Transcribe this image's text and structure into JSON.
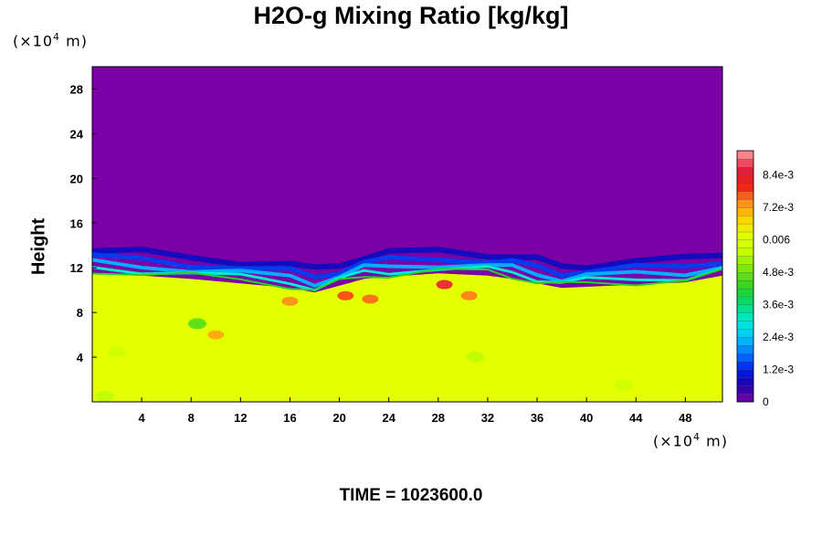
{
  "chart_data": {
    "type": "heatmap",
    "title": "H2O-g Mixing Ratio [kg/kg]",
    "ylabel": "Height",
    "xlabel": "",
    "x_unit": {
      "prefix": "(×10",
      "exponent": "4",
      "suffix": " m)"
    },
    "y_unit": {
      "prefix": "(×10",
      "exponent": "4",
      "suffix": " m)"
    },
    "x_ticks": [
      "4",
      "8",
      "12",
      "16",
      "20",
      "24",
      "28",
      "32",
      "36",
      "40",
      "44",
      "48"
    ],
    "y_ticks": [
      "4",
      "8",
      "12",
      "16",
      "20",
      "24",
      "28"
    ],
    "xlim": [
      0,
      51
    ],
    "ylim": [
      0,
      30
    ],
    "colorbar": {
      "labels": [
        "0",
        "1.2e-3",
        "2.4e-3",
        "3.6e-3",
        "4.8e-3",
        "0.006",
        "7.2e-3",
        "8.4e-3"
      ],
      "label_values": [
        0,
        0.0012,
        0.0024,
        0.0036,
        0.0048,
        0.006,
        0.0072,
        0.0084
      ],
      "range": [
        0,
        0.0093
      ]
    },
    "field": {
      "upper_value": 0,
      "lower_value": 0.0062,
      "boundary_height": [
        [
          0,
          11.5
        ],
        [
          4,
          11.3
        ],
        [
          8,
          11.0
        ],
        [
          12,
          10.6
        ],
        [
          16,
          10.2
        ],
        [
          18,
          9.8
        ],
        [
          20,
          10.4
        ],
        [
          22,
          11.0
        ],
        [
          24,
          11.2
        ],
        [
          28,
          11.5
        ],
        [
          32,
          11.3
        ],
        [
          34,
          11.0
        ],
        [
          36,
          10.6
        ],
        [
          38,
          10.2
        ],
        [
          40,
          10.3
        ],
        [
          44,
          10.5
        ],
        [
          48,
          10.7
        ],
        [
          51,
          11.3
        ]
      ],
      "moist_patches": [
        {
          "x": 20.5,
          "y": 9.5,
          "value": 0.0078
        },
        {
          "x": 22.5,
          "y": 9.2,
          "value": 0.0076
        },
        {
          "x": 28.5,
          "y": 10.5,
          "value": 0.0085
        },
        {
          "x": 30.5,
          "y": 9.5,
          "value": 0.0075
        },
        {
          "x": 16.0,
          "y": 9.0,
          "value": 0.0074
        },
        {
          "x": 10.0,
          "y": 6.0,
          "value": 0.0072
        }
      ],
      "dry_patches": [
        {
          "x": 8.5,
          "y": 7.0,
          "value": 0.0045
        },
        {
          "x": 31.0,
          "y": 4.0,
          "value": 0.0055
        },
        {
          "x": 2.0,
          "y": 4.5,
          "value": 0.0057
        },
        {
          "x": 1.0,
          "y": 0.5,
          "value": 0.0055
        },
        {
          "x": 43.0,
          "y": 1.5,
          "value": 0.0057
        }
      ]
    }
  },
  "time_label": "TIME = 1023600.0"
}
